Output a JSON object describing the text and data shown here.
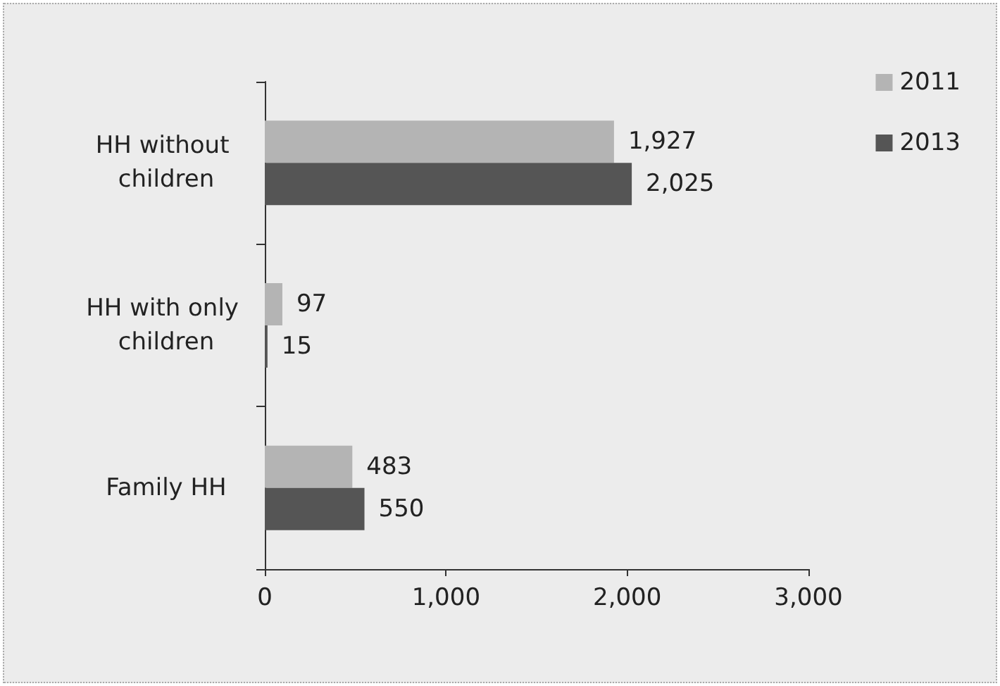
{
  "chart_data": {
    "type": "bar",
    "orientation": "horizontal",
    "categories": [
      "HH without children",
      "HH with only children",
      "Family HH"
    ],
    "series": [
      {
        "name": "2011",
        "color": "#b4b4b4",
        "values": [
          1927,
          97,
          483
        ],
        "value_labels": [
          "1,927",
          "97",
          "483"
        ]
      },
      {
        "name": "2013",
        "color": "#555555",
        "values": [
          2025,
          15,
          550
        ],
        "value_labels": [
          "2,025",
          "15",
          "550"
        ]
      }
    ],
    "xlim": [
      0,
      3000
    ],
    "xticks": [
      0,
      {
        "value": 1000,
        "label": "1,000"
      },
      {
        "value": 2000,
        "label": "2,000"
      },
      {
        "value": 3000,
        "label": "3,000"
      }
    ],
    "grid": false,
    "legend": "top right"
  }
}
